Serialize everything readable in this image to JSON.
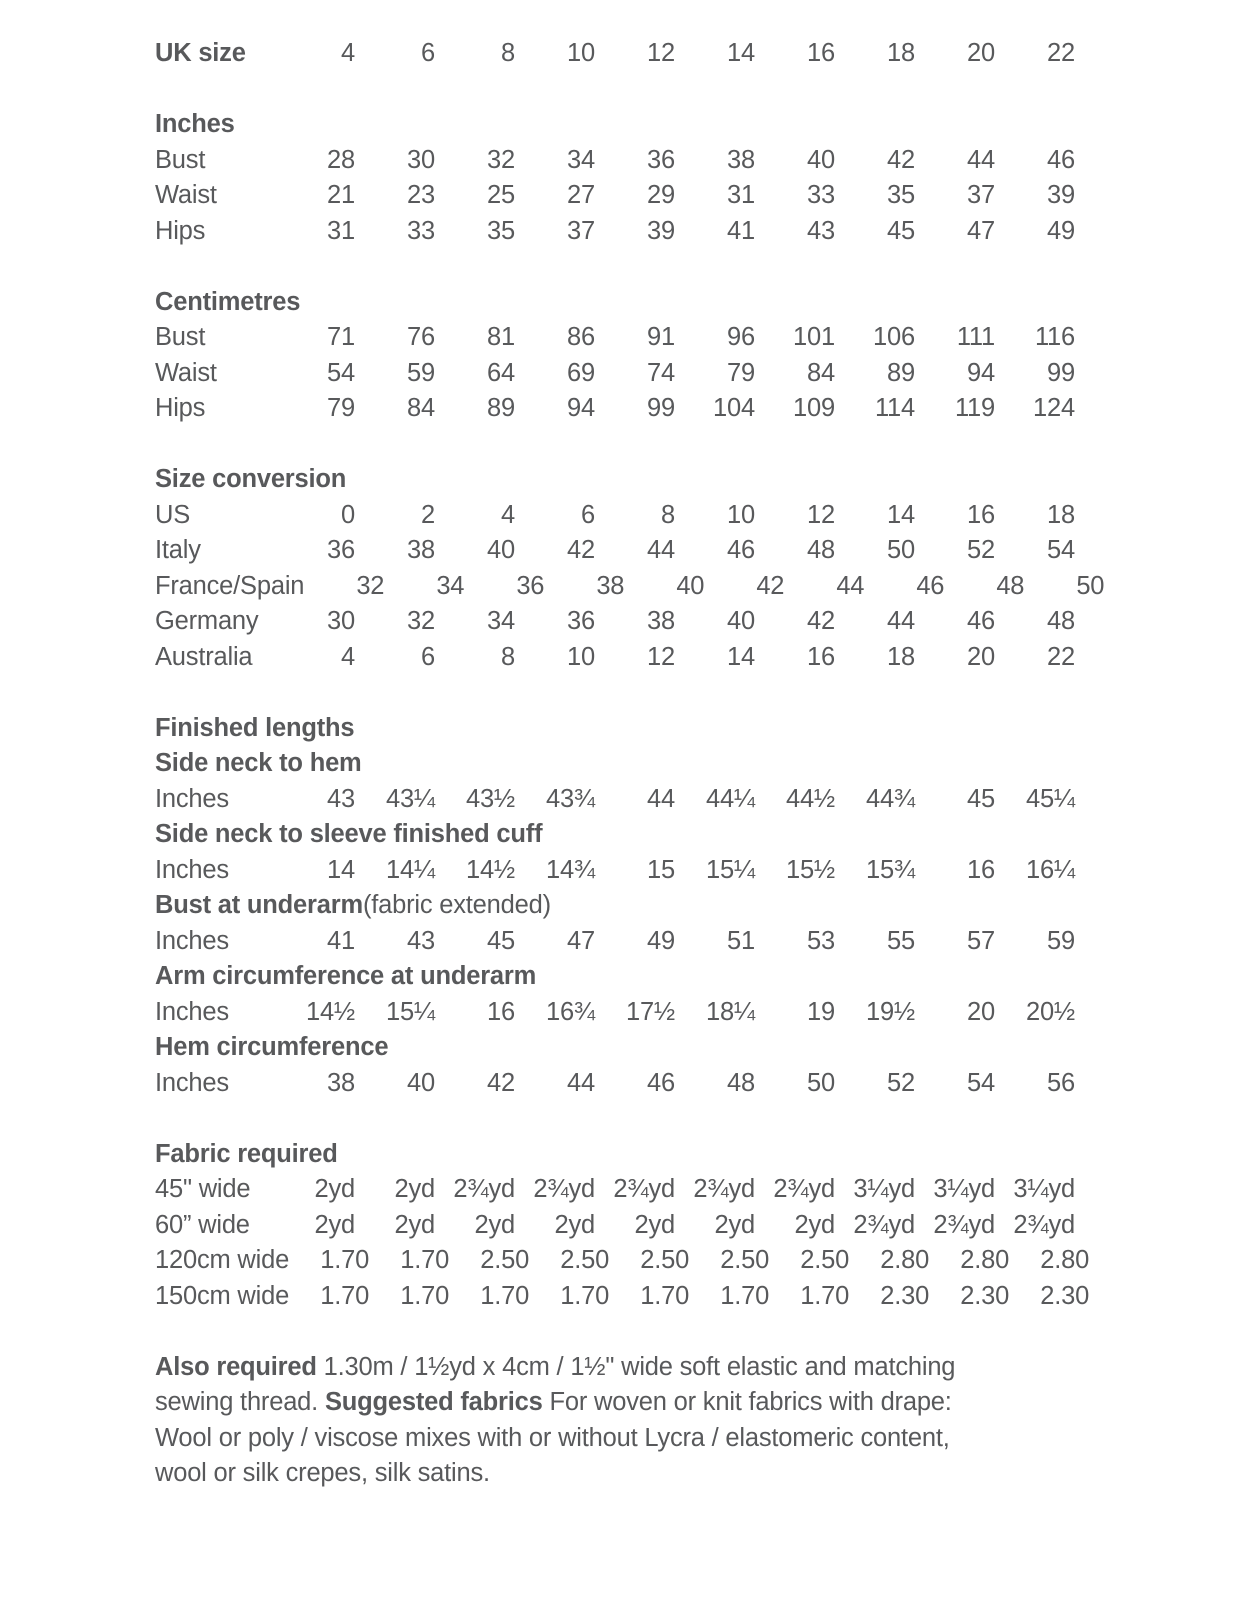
{
  "page": {
    "background": "#ffffff",
    "text_color": "#58595b"
  },
  "size_chart": {
    "uk_size": {
      "label": "UK size",
      "values": [
        "4",
        "6",
        "8",
        "10",
        "12",
        "14",
        "16",
        "18",
        "20",
        "22"
      ]
    },
    "inches": {
      "header": "Inches",
      "rows": [
        {
          "label": "Bust",
          "values": [
            "28",
            "30",
            "32",
            "34",
            "36",
            "38",
            "40",
            "42",
            "44",
            "46"
          ]
        },
        {
          "label": "Waist",
          "values": [
            "21",
            "23",
            "25",
            "27",
            "29",
            "31",
            "33",
            "35",
            "37",
            "39"
          ]
        },
        {
          "label": "Hips",
          "values": [
            "31",
            "33",
            "35",
            "37",
            "39",
            "41",
            "43",
            "45",
            "47",
            "49"
          ]
        }
      ]
    },
    "centimetres": {
      "header": "Centimetres",
      "rows": [
        {
          "label": "Bust",
          "values": [
            "71",
            "76",
            "81",
            "86",
            "91",
            "96",
            "101",
            "106",
            "111",
            "116"
          ]
        },
        {
          "label": "Waist",
          "values": [
            "54",
            "59",
            "64",
            "69",
            "74",
            "79",
            "84",
            "89",
            "94",
            "99"
          ]
        },
        {
          "label": "Hips",
          "values": [
            "79",
            "84",
            "89",
            "94",
            "99",
            "104",
            "109",
            "114",
            "119",
            "124"
          ]
        }
      ]
    },
    "size_conversion": {
      "header": "Size conversion",
      "rows": [
        {
          "label": "US",
          "values": [
            "0",
            "2",
            "4",
            "6",
            "8",
            "10",
            "12",
            "14",
            "16",
            "18"
          ]
        },
        {
          "label": "Italy",
          "values": [
            "36",
            "38",
            "40",
            "42",
            "44",
            "46",
            "48",
            "50",
            "52",
            "54"
          ]
        },
        {
          "label": "France/Spain",
          "values": [
            "32",
            "34",
            "36",
            "38",
            "40",
            "42",
            "44",
            "46",
            "48",
            "50"
          ]
        },
        {
          "label": "Germany",
          "values": [
            "30",
            "32",
            "34",
            "36",
            "38",
            "40",
            "42",
            "44",
            "46",
            "48"
          ]
        },
        {
          "label": "Australia",
          "values": [
            "4",
            "6",
            "8",
            "10",
            "12",
            "14",
            "16",
            "18",
            "20",
            "22"
          ]
        }
      ]
    },
    "finished_lengths": {
      "header": "Finished lengths",
      "measurements": [
        {
          "title": "Side neck to hem",
          "title_suffix": "",
          "unit": "Inches",
          "values": [
            "43",
            "43¼",
            "43½",
            "43¾",
            "44",
            "44¼",
            "44½",
            "44¾",
            "45",
            "45¼"
          ]
        },
        {
          "title": "Side neck to sleeve finished cuff",
          "title_suffix": "",
          "unit": "Inches",
          "values": [
            "14",
            "14¼",
            "14½",
            "14¾",
            "15",
            "15¼",
            "15½",
            "15¾",
            "16",
            "16¼"
          ]
        },
        {
          "title": "Bust at underarm",
          "title_suffix": " (fabric extended)",
          "unit": "Inches",
          "values": [
            "41",
            "43",
            "45",
            "47",
            "49",
            "51",
            "53",
            "55",
            "57",
            "59"
          ]
        },
        {
          "title": "Arm circumference at underarm",
          "title_suffix": "",
          "unit": "Inches",
          "values": [
            "14½",
            "15¼",
            "16",
            "16¾",
            "17½",
            "18¼",
            "19",
            "19½",
            "20",
            "20½"
          ]
        },
        {
          "title": "Hem circumference",
          "title_suffix": "",
          "unit": "Inches",
          "values": [
            "38",
            "40",
            "42",
            "44",
            "46",
            "48",
            "50",
            "52",
            "54",
            "56"
          ]
        }
      ]
    },
    "fabric_required": {
      "header": "Fabric required",
      "rows": [
        {
          "label": "45\" wide",
          "values": [
            "2yd",
            "2yd",
            "2¾yd",
            "2¾yd",
            "2¾yd",
            "2¾yd",
            "2¾yd",
            "3¼yd",
            "3¼yd",
            "3¼yd"
          ]
        },
        {
          "label": "60” wide",
          "values": [
            "2yd",
            "2yd",
            "2yd",
            "2yd",
            "2yd",
            "2yd",
            "2yd",
            "2¾yd",
            "2¾yd",
            "2¾yd"
          ]
        },
        {
          "label": "120cm wide",
          "values": [
            "1.70",
            "1.70",
            "2.50",
            "2.50",
            "2.50",
            "2.50",
            "2.50",
            "2.80",
            "2.80",
            "2.80"
          ]
        },
        {
          "label": "150cm wide",
          "values": [
            "1.70",
            "1.70",
            "1.70",
            "1.70",
            "1.70",
            "1.70",
            "1.70",
            "2.30",
            "2.30",
            "2.30"
          ]
        }
      ]
    }
  },
  "footer": {
    "lines": [
      {
        "bold": "Also required",
        "rest": " 1.30m / 1½yd  x 4cm / 1½\" wide soft elastic and matching"
      },
      {
        "pre": "sewing thread. ",
        "bold": "Suggested fabrics",
        "rest": " For woven or knit fabrics with drape:"
      },
      {
        "text": "Wool or poly / viscose mixes with or without Lycra / elastomeric content,"
      },
      {
        "text": "wool or silk crepes, silk satins."
      }
    ]
  }
}
